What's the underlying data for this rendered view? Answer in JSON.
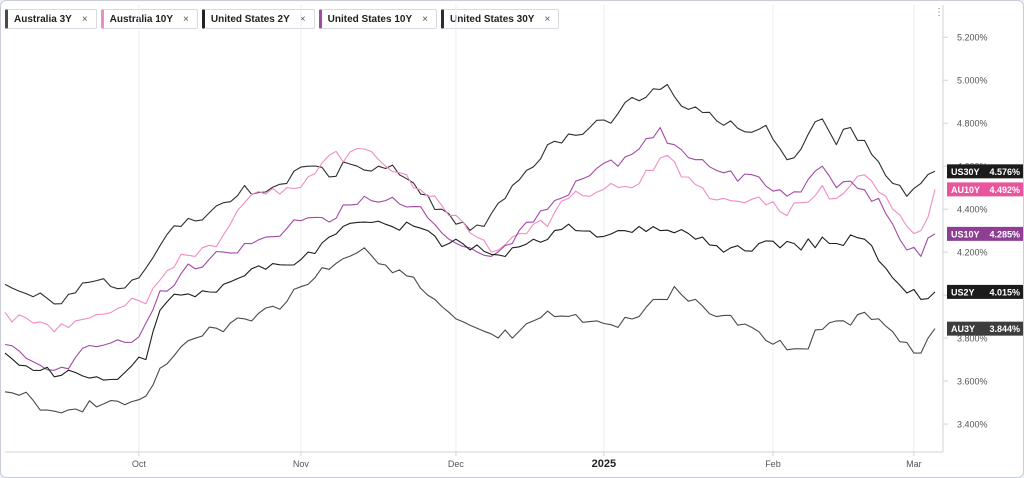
{
  "legend": [
    {
      "name": "Australia 3Y",
      "color": "#4a4a4a"
    },
    {
      "name": "Australia 10Y",
      "color": "#f08cc4"
    },
    {
      "name": "United States 2Y",
      "color": "#222222"
    },
    {
      "name": "United States 10Y",
      "color": "#a14aa6"
    },
    {
      "name": "United States 30Y",
      "color": "#2e2e2e"
    }
  ],
  "close_glyph": "×",
  "menu_glyph": "⋮",
  "chart_data": {
    "type": "line",
    "y_ticks": [
      "3.400%",
      "3.600%",
      "3.800%",
      "4.000%",
      "4.200%",
      "4.400%",
      "4.600%",
      "4.800%",
      "5.000%",
      "5.200%"
    ],
    "ylim": [
      3.27,
      5.35
    ],
    "x_labels": [
      {
        "label": "Oct",
        "idx": 19,
        "bold": false
      },
      {
        "label": "Nov",
        "idx": 42,
        "bold": false
      },
      {
        "label": "Dec",
        "idx": 64,
        "bold": false
      },
      {
        "label": "2025",
        "idx": 85,
        "bold": true
      },
      {
        "label": "Feb",
        "idx": 109,
        "bold": false
      },
      {
        "label": "Mar",
        "idx": 129,
        "bold": false
      }
    ],
    "x_count": 133,
    "series": [
      {
        "name": "United States 30Y",
        "tag": "US30Y",
        "last": "4.576%",
        "color": "#2e2e2e",
        "tag_bg": "#1b1b1b",
        "anchors": [
          [
            0,
            4.05
          ],
          [
            5,
            4.01
          ],
          [
            8,
            3.96
          ],
          [
            12,
            4.06
          ],
          [
            15,
            4.04
          ],
          [
            19,
            4.08
          ],
          [
            22,
            4.23
          ],
          [
            25,
            4.32
          ],
          [
            28,
            4.35
          ],
          [
            31,
            4.43
          ],
          [
            34,
            4.51
          ],
          [
            37,
            4.48
          ],
          [
            40,
            4.52
          ],
          [
            43,
            4.6
          ],
          [
            46,
            4.55
          ],
          [
            48,
            4.62
          ],
          [
            50,
            4.6
          ],
          [
            53,
            4.6
          ],
          [
            56,
            4.56
          ],
          [
            59,
            4.47
          ],
          [
            62,
            4.4
          ],
          [
            65,
            4.34
          ],
          [
            68,
            4.32
          ],
          [
            71,
            4.45
          ],
          [
            74,
            4.58
          ],
          [
            77,
            4.7
          ],
          [
            80,
            4.75
          ],
          [
            83,
            4.78
          ],
          [
            86,
            4.8
          ],
          [
            89,
            4.92
          ],
          [
            92,
            4.96
          ],
          [
            94,
            4.98
          ],
          [
            96,
            4.88
          ],
          [
            99,
            4.85
          ],
          [
            102,
            4.79
          ],
          [
            105,
            4.76
          ],
          [
            108,
            4.79
          ],
          [
            111,
            4.63
          ],
          [
            113,
            4.68
          ],
          [
            116,
            4.82
          ],
          [
            118,
            4.7
          ],
          [
            120,
            4.78
          ],
          [
            122,
            4.72
          ],
          [
            124,
            4.62
          ],
          [
            126,
            4.52
          ],
          [
            128,
            4.46
          ],
          [
            130,
            4.52
          ],
          [
            132,
            4.576
          ]
        ]
      },
      {
        "name": "Australia 10Y",
        "tag": "AU10Y",
        "last": "4.492%",
        "color": "#f08cc4",
        "tag_bg": "#e8559c",
        "anchors": [
          [
            0,
            3.92
          ],
          [
            4,
            3.87
          ],
          [
            7,
            3.83
          ],
          [
            10,
            3.88
          ],
          [
            13,
            3.91
          ],
          [
            17,
            3.95
          ],
          [
            20,
            3.96
          ],
          [
            22,
            4.07
          ],
          [
            25,
            4.19
          ],
          [
            28,
            4.22
          ],
          [
            31,
            4.28
          ],
          [
            34,
            4.43
          ],
          [
            37,
            4.47
          ],
          [
            40,
            4.5
          ],
          [
            43,
            4.55
          ],
          [
            46,
            4.65
          ],
          [
            48,
            4.62
          ],
          [
            51,
            4.68
          ],
          [
            54,
            4.6
          ],
          [
            57,
            4.56
          ],
          [
            60,
            4.46
          ],
          [
            63,
            4.37
          ],
          [
            66,
            4.29
          ],
          [
            69,
            4.2
          ],
          [
            72,
            4.27
          ],
          [
            75,
            4.33
          ],
          [
            77,
            4.32
          ],
          [
            80,
            4.45
          ],
          [
            83,
            4.46
          ],
          [
            86,
            4.52
          ],
          [
            89,
            4.5
          ],
          [
            92,
            4.58
          ],
          [
            94,
            4.65
          ],
          [
            96,
            4.55
          ],
          [
            99,
            4.5
          ],
          [
            102,
            4.45
          ],
          [
            105,
            4.43
          ],
          [
            108,
            4.42
          ],
          [
            111,
            4.37
          ],
          [
            113,
            4.43
          ],
          [
            116,
            4.51
          ],
          [
            118,
            4.45
          ],
          [
            120,
            4.51
          ],
          [
            122,
            4.56
          ],
          [
            124,
            4.48
          ],
          [
            126,
            4.4
          ],
          [
            128,
            4.32
          ],
          [
            130,
            4.3
          ],
          [
            132,
            4.492
          ]
        ]
      },
      {
        "name": "United States 10Y",
        "tag": "US10Y",
        "last": "4.285%",
        "color": "#a14aa6",
        "tag_bg": "#8e3f94",
        "anchors": [
          [
            0,
            3.77
          ],
          [
            4,
            3.69
          ],
          [
            7,
            3.65
          ],
          [
            10,
            3.71
          ],
          [
            13,
            3.76
          ],
          [
            17,
            3.78
          ],
          [
            20,
            3.87
          ],
          [
            22,
            4.02
          ],
          [
            25,
            4.1
          ],
          [
            28,
            4.13
          ],
          [
            31,
            4.2
          ],
          [
            34,
            4.24
          ],
          [
            37,
            4.27
          ],
          [
            40,
            4.31
          ],
          [
            43,
            4.36
          ],
          [
            46,
            4.34
          ],
          [
            48,
            4.42
          ],
          [
            51,
            4.46
          ],
          [
            54,
            4.44
          ],
          [
            57,
            4.41
          ],
          [
            60,
            4.36
          ],
          [
            63,
            4.26
          ],
          [
            66,
            4.22
          ],
          [
            69,
            4.18
          ],
          [
            72,
            4.24
          ],
          [
            75,
            4.34
          ],
          [
            78,
            4.44
          ],
          [
            81,
            4.53
          ],
          [
            84,
            4.59
          ],
          [
            87,
            4.6
          ],
          [
            90,
            4.68
          ],
          [
            93,
            4.78
          ],
          [
            95,
            4.7
          ],
          [
            98,
            4.63
          ],
          [
            101,
            4.58
          ],
          [
            104,
            4.53
          ],
          [
            107,
            4.55
          ],
          [
            110,
            4.49
          ],
          [
            113,
            4.48
          ],
          [
            116,
            4.6
          ],
          [
            118,
            4.5
          ],
          [
            120,
            4.53
          ],
          [
            122,
            4.49
          ],
          [
            124,
            4.45
          ],
          [
            126,
            4.33
          ],
          [
            128,
            4.21
          ],
          [
            130,
            4.18
          ],
          [
            132,
            4.285
          ]
        ]
      },
      {
        "name": "United States 2Y",
        "tag": "US2Y",
        "last": "4.015%",
        "color": "#1e1e1e",
        "tag_bg": "#1b1b1b",
        "anchors": [
          [
            0,
            3.73
          ],
          [
            4,
            3.65
          ],
          [
            7,
            3.62
          ],
          [
            10,
            3.64
          ],
          [
            13,
            3.62
          ],
          [
            17,
            3.64
          ],
          [
            20,
            3.7
          ],
          [
            22,
            3.93
          ],
          [
            25,
            4.0
          ],
          [
            28,
            4.02
          ],
          [
            31,
            4.05
          ],
          [
            34,
            4.09
          ],
          [
            37,
            4.12
          ],
          [
            40,
            4.14
          ],
          [
            43,
            4.2
          ],
          [
            46,
            4.27
          ],
          [
            48,
            4.32
          ],
          [
            51,
            4.34
          ],
          [
            54,
            4.33
          ],
          [
            57,
            4.34
          ],
          [
            60,
            4.3
          ],
          [
            63,
            4.24
          ],
          [
            66,
            4.21
          ],
          [
            69,
            4.19
          ],
          [
            72,
            4.22
          ],
          [
            75,
            4.26
          ],
          [
            78,
            4.3
          ],
          [
            81,
            4.3
          ],
          [
            84,
            4.27
          ],
          [
            87,
            4.3
          ],
          [
            90,
            4.32
          ],
          [
            93,
            4.3
          ],
          [
            95,
            4.29
          ],
          [
            98,
            4.26
          ],
          [
            101,
            4.23
          ],
          [
            104,
            4.23
          ],
          [
            107,
            4.24
          ],
          [
            110,
            4.22
          ],
          [
            113,
            4.21
          ],
          [
            116,
            4.27
          ],
          [
            118,
            4.24
          ],
          [
            120,
            4.28
          ],
          [
            122,
            4.26
          ],
          [
            124,
            4.16
          ],
          [
            126,
            4.08
          ],
          [
            128,
            4.01
          ],
          [
            130,
            3.98
          ],
          [
            132,
            4.015
          ]
        ]
      },
      {
        "name": "Australia 3Y",
        "tag": "AU3Y",
        "last": "3.844%",
        "color": "#4a4a4a",
        "tag_bg": "#3d3d3d",
        "anchors": [
          [
            0,
            3.55
          ],
          [
            4,
            3.51
          ],
          [
            7,
            3.46
          ],
          [
            10,
            3.47
          ],
          [
            13,
            3.48
          ],
          [
            17,
            3.49
          ],
          [
            20,
            3.53
          ],
          [
            22,
            3.66
          ],
          [
            25,
            3.76
          ],
          [
            28,
            3.81
          ],
          [
            31,
            3.83
          ],
          [
            34,
            3.89
          ],
          [
            37,
            3.94
          ],
          [
            40,
            3.97
          ],
          [
            43,
            4.05
          ],
          [
            46,
            4.12
          ],
          [
            48,
            4.17
          ],
          [
            51,
            4.22
          ],
          [
            54,
            4.14
          ],
          [
            57,
            4.09
          ],
          [
            60,
            4.0
          ],
          [
            63,
            3.92
          ],
          [
            66,
            3.86
          ],
          [
            69,
            3.82
          ],
          [
            72,
            3.8
          ],
          [
            75,
            3.88
          ],
          [
            78,
            3.9
          ],
          [
            81,
            3.91
          ],
          [
            84,
            3.88
          ],
          [
            87,
            3.85
          ],
          [
            90,
            3.9
          ],
          [
            93,
            3.98
          ],
          [
            95,
            4.04
          ],
          [
            98,
            3.98
          ],
          [
            101,
            3.9
          ],
          [
            104,
            3.86
          ],
          [
            107,
            3.83
          ],
          [
            110,
            3.79
          ],
          [
            113,
            3.75
          ],
          [
            116,
            3.84
          ],
          [
            118,
            3.88
          ],
          [
            120,
            3.86
          ],
          [
            122,
            3.92
          ],
          [
            124,
            3.89
          ],
          [
            126,
            3.83
          ],
          [
            128,
            3.78
          ],
          [
            130,
            3.73
          ],
          [
            132,
            3.844
          ]
        ]
      }
    ]
  }
}
